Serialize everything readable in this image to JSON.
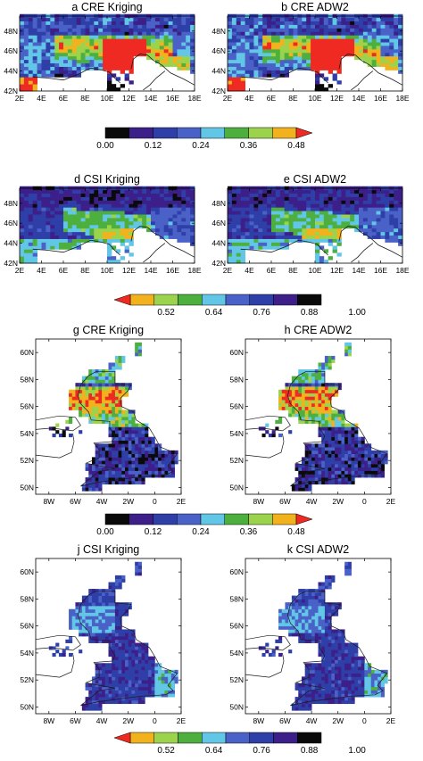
{
  "colors": {
    "black": "#0a0a0a",
    "indigo": "#3d1f8a",
    "blue_dark": "#2f3fa8",
    "blue": "#4a62c8",
    "cyan": "#62c6e6",
    "green": "#4caf3e",
    "lightgreen": "#9bd44c",
    "orange": "#f2b21e",
    "red": "#ee2a22",
    "coast": "#1a1a1a"
  },
  "colorbars": {
    "cre": {
      "labels": [
        "0.00",
        "0.12",
        "0.24",
        "0.36",
        "0.48"
      ],
      "colors": [
        "#0a0a0a",
        "#3d1f8a",
        "#2f3fa8",
        "#4a62c8",
        "#62c6e6",
        "#4caf3e",
        "#9bd44c",
        "#f2b21e",
        "#ee2a22"
      ]
    },
    "csi": {
      "labels": [
        "0.52",
        "0.64",
        "0.76",
        "0.88",
        "1.00"
      ],
      "colors": [
        "#ee2a22",
        "#f2b21e",
        "#9bd44c",
        "#4caf3e",
        "#62c6e6",
        "#4a62c8",
        "#2f3fa8",
        "#3d1f8a",
        "#0a0a0a"
      ]
    }
  },
  "chart_data": [
    {
      "id": "a",
      "type": "heatmap",
      "title": "a CRE Kriging",
      "region": "alps",
      "metric": "CRE",
      "method": "Kriging",
      "x_ticks": [
        "2E",
        "4E",
        "6E",
        "8E",
        "10E",
        "12E",
        "14E",
        "16E",
        "18E"
      ],
      "y_ticks": [
        "42N",
        "44N",
        "46N",
        "48N"
      ],
      "xlim": [
        2,
        18
      ],
      "ylim": [
        42,
        49.5
      ],
      "colorbar_range": [
        0.0,
        0.48
      ]
    },
    {
      "id": "b",
      "type": "heatmap",
      "title": "b CRE ADW2",
      "region": "alps",
      "metric": "CRE",
      "method": "ADW2",
      "x_ticks": [
        "2E",
        "4E",
        "6E",
        "8E",
        "10E",
        "12E",
        "14E",
        "16E",
        "18E"
      ],
      "y_ticks": [
        "42N",
        "44N",
        "46N",
        "48N"
      ],
      "xlim": [
        2,
        18
      ],
      "ylim": [
        42,
        49.5
      ],
      "colorbar_range": [
        0.0,
        0.48
      ]
    },
    {
      "id": "d",
      "type": "heatmap",
      "title": "d CSI Kriging",
      "region": "alps",
      "metric": "CSI",
      "method": "Kriging",
      "x_ticks": [
        "2E",
        "4E",
        "6E",
        "8E",
        "10E",
        "12E",
        "14E",
        "16E",
        "18E"
      ],
      "y_ticks": [
        "42N",
        "44N",
        "46N",
        "48N"
      ],
      "xlim": [
        2,
        18
      ],
      "ylim": [
        42,
        49.5
      ],
      "colorbar_range": [
        0.52,
        1.0
      ]
    },
    {
      "id": "e",
      "type": "heatmap",
      "title": "e CSI ADW2",
      "region": "alps",
      "metric": "CSI",
      "method": "ADW2",
      "x_ticks": [
        "2E",
        "4E",
        "6E",
        "8E",
        "10E",
        "12E",
        "14E",
        "16E",
        "18E"
      ],
      "y_ticks": [
        "42N",
        "44N",
        "46N",
        "48N"
      ],
      "xlim": [
        2,
        18
      ],
      "ylim": [
        42,
        49.5
      ],
      "colorbar_range": [
        0.52,
        1.0
      ]
    },
    {
      "id": "g",
      "type": "heatmap",
      "title": "g CRE Kriging",
      "region": "uk",
      "metric": "CRE",
      "method": "Kriging",
      "x_ticks": [
        "8W",
        "6W",
        "4W",
        "2W",
        "0",
        "2E"
      ],
      "y_ticks": [
        "50N",
        "52N",
        "54N",
        "56N",
        "58N",
        "60N"
      ],
      "xlim": [
        -9,
        2
      ],
      "ylim": [
        49.5,
        61
      ],
      "colorbar_range": [
        0.0,
        0.48
      ]
    },
    {
      "id": "h",
      "type": "heatmap",
      "title": "h CRE ADW2",
      "region": "uk",
      "metric": "CRE",
      "method": "ADW2",
      "x_ticks": [
        "8W",
        "6W",
        "4W",
        "2W",
        "0",
        "2E"
      ],
      "y_ticks": [
        "50N",
        "52N",
        "54N",
        "56N",
        "58N",
        "60N"
      ],
      "xlim": [
        -9,
        2
      ],
      "ylim": [
        49.5,
        61
      ],
      "colorbar_range": [
        0.0,
        0.48
      ]
    },
    {
      "id": "j",
      "type": "heatmap",
      "title": "j CSI Kriging",
      "region": "uk",
      "metric": "CSI",
      "method": "Kriging",
      "x_ticks": [
        "8W",
        "6W",
        "4W",
        "2W",
        "0",
        "2E"
      ],
      "y_ticks": [
        "50N",
        "52N",
        "54N",
        "56N",
        "58N",
        "60N"
      ],
      "xlim": [
        -9,
        2
      ],
      "ylim": [
        49.5,
        61
      ],
      "colorbar_range": [
        0.52,
        1.0
      ]
    },
    {
      "id": "k",
      "type": "heatmap",
      "title": "k CSI ADW2",
      "region": "uk",
      "metric": "CSI",
      "method": "ADW2",
      "x_ticks": [
        "8W",
        "6W",
        "4W",
        "2W",
        "0",
        "2E"
      ],
      "y_ticks": [
        "50N",
        "52N",
        "54N",
        "56N",
        "58N",
        "60N"
      ],
      "xlim": [
        -9,
        2
      ],
      "ylim": [
        49.5,
        61
      ],
      "colorbar_range": [
        0.52,
        1.0
      ]
    }
  ]
}
